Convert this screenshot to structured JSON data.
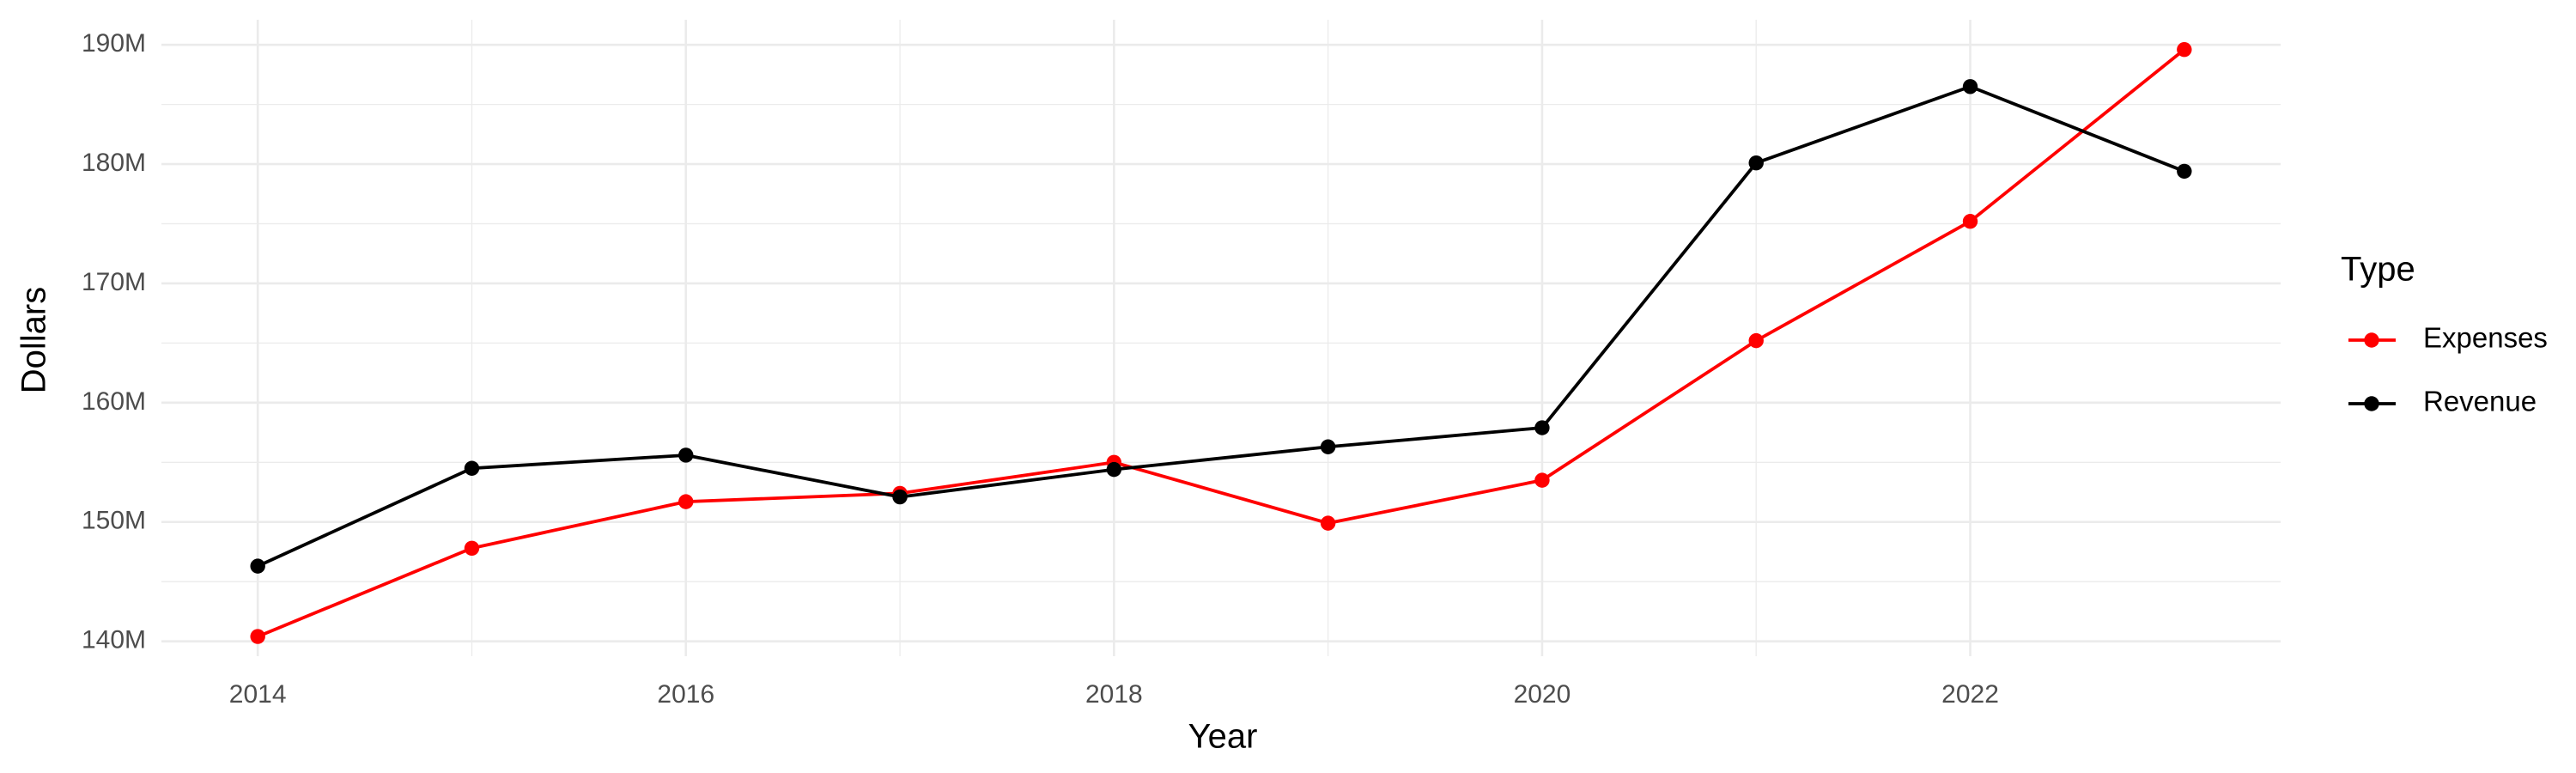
{
  "chart_data": {
    "type": "line",
    "x_label": "Year",
    "y_label": "Dollars",
    "legend_title": "Type",
    "legend_position": "right",
    "grid": true,
    "x": [
      2014,
      2015,
      2016,
      2017,
      2018,
      2019,
      2020,
      2021,
      2022,
      2023
    ],
    "xlim": [
      2013.55,
      2023.45
    ],
    "xticks": [
      2014,
      2016,
      2018,
      2020,
      2022
    ],
    "ylim": [
      138750000,
      192100000
    ],
    "yticks": [
      {
        "value": 140000000,
        "label": "140M"
      },
      {
        "value": 150000000,
        "label": "150M"
      },
      {
        "value": 160000000,
        "label": "160M"
      },
      {
        "value": 170000000,
        "label": "170M"
      },
      {
        "value": 180000000,
        "label": "180M"
      },
      {
        "value": 190000000,
        "label": "190M"
      }
    ],
    "series": [
      {
        "name": "Expenses",
        "color": "#ff0000",
        "values": [
          140400000,
          147800000,
          151700000,
          152400000,
          155000000,
          149900000,
          153500000,
          165200000,
          175200000,
          189600000
        ]
      },
      {
        "name": "Revenue",
        "color": "#000000",
        "values": [
          146300000,
          154500000,
          155600000,
          152100000,
          154400000,
          156300000,
          157900000,
          180100000,
          186500000,
          179400000
        ]
      }
    ]
  }
}
